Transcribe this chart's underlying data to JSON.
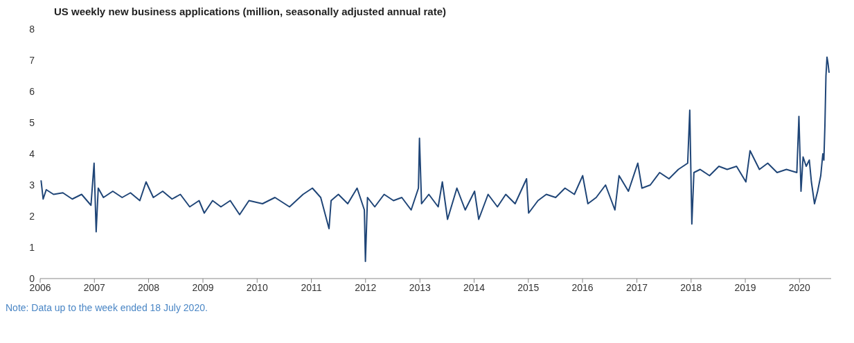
{
  "chart_data": {
    "type": "line",
    "title": "US weekly new business applications (million, seasonally adjusted annual rate)",
    "annotations": [
      "Note: Data up to the week ended 18 July 2020."
    ],
    "xlim": [
      "2006-01-01",
      "2020-08-01"
    ],
    "xticks": [
      "2006",
      "2007",
      "2008",
      "2009",
      "2010",
      "2011",
      "2012",
      "2013",
      "2014",
      "2015",
      "2016",
      "2017",
      "2018",
      "2019",
      "2020"
    ],
    "ylim": [
      0,
      8
    ],
    "yticks": [
      0,
      1,
      2,
      3,
      4,
      5,
      6,
      7,
      8
    ],
    "grid": false,
    "legend": false,
    "marker": "none",
    "line_style": "solid",
    "x": [
      "2006-01-07",
      "2006-01-21",
      "2006-02-11",
      "2006-04-01",
      "2006-06-03",
      "2006-08-05",
      "2006-10-07",
      "2006-12-09",
      "2006-12-30",
      "2007-01-13",
      "2007-01-27",
      "2007-03-03",
      "2007-05-05",
      "2007-07-07",
      "2007-09-01",
      "2007-11-03",
      "2007-12-15",
      "2008-02-02",
      "2008-04-05",
      "2008-06-07",
      "2008-08-02",
      "2008-10-04",
      "2008-12-06",
      "2009-01-10",
      "2009-03-07",
      "2009-05-02",
      "2009-07-04",
      "2009-09-05",
      "2009-11-07",
      "2010-02-06",
      "2010-05-01",
      "2010-08-07",
      "2010-11-06",
      "2011-01-08",
      "2011-03-05",
      "2011-04-30",
      "2011-05-14",
      "2011-07-02",
      "2011-09-03",
      "2011-11-05",
      "2011-12-24",
      "2011-12-31",
      "2012-01-14",
      "2012-03-03",
      "2012-05-05",
      "2012-07-07",
      "2012-09-01",
      "2012-11-03",
      "2012-12-22",
      "2012-12-29",
      "2013-01-12",
      "2013-03-02",
      "2013-05-04",
      "2013-06-01",
      "2013-07-06",
      "2013-09-07",
      "2013-11-02",
      "2014-01-04",
      "2014-02-01",
      "2014-04-05",
      "2014-06-07",
      "2014-08-02",
      "2014-10-04",
      "2014-12-20",
      "2015-01-03",
      "2015-03-07",
      "2015-05-02",
      "2015-07-04",
      "2015-09-05",
      "2015-11-07",
      "2016-01-02",
      "2016-02-06",
      "2016-04-02",
      "2016-06-04",
      "2016-08-06",
      "2016-09-03",
      "2016-11-05",
      "2017-01-07",
      "2017-02-04",
      "2017-04-01",
      "2017-06-03",
      "2017-08-05",
      "2017-10-07",
      "2017-12-09",
      "2017-12-23",
      "2018-01-06",
      "2018-01-20",
      "2018-03-03",
      "2018-05-05",
      "2018-07-07",
      "2018-09-01",
      "2018-11-03",
      "2019-01-05",
      "2019-02-02",
      "2019-04-06",
      "2019-06-01",
      "2019-08-03",
      "2019-10-05",
      "2019-12-14",
      "2019-12-28",
      "2020-01-11",
      "2020-01-25",
      "2020-02-15",
      "2020-03-07",
      "2020-03-21",
      "2020-04-11",
      "2020-05-02",
      "2020-05-23",
      "2020-06-06",
      "2020-06-13",
      "2020-06-20",
      "2020-06-27",
      "2020-07-04",
      "2020-07-11",
      "2020-07-18"
    ],
    "series": [
      {
        "color": "#1f4577",
        "values": [
          3.15,
          2.55,
          2.85,
          2.7,
          2.75,
          2.55,
          2.7,
          2.35,
          3.7,
          1.5,
          2.9,
          2.6,
          2.8,
          2.6,
          2.75,
          2.5,
          3.1,
          2.6,
          2.8,
          2.55,
          2.7,
          2.3,
          2.5,
          2.1,
          2.5,
          2.3,
          2.5,
          2.05,
          2.5,
          2.4,
          2.6,
          2.3,
          2.7,
          2.9,
          2.6,
          1.6,
          2.5,
          2.7,
          2.4,
          2.9,
          2.2,
          0.55,
          2.6,
          2.3,
          2.7,
          2.5,
          2.6,
          2.2,
          2.9,
          4.5,
          2.4,
          2.7,
          2.3,
          3.1,
          1.9,
          2.9,
          2.2,
          2.8,
          1.9,
          2.7,
          2.3,
          2.7,
          2.4,
          3.2,
          2.1,
          2.5,
          2.7,
          2.6,
          2.9,
          2.7,
          3.3,
          2.4,
          2.6,
          3.0,
          2.2,
          3.3,
          2.8,
          3.7,
          2.9,
          3.0,
          3.4,
          3.2,
          3.5,
          3.7,
          5.4,
          1.75,
          3.4,
          3.5,
          3.3,
          3.6,
          3.5,
          3.6,
          3.1,
          4.1,
          3.5,
          3.7,
          3.4,
          3.5,
          3.4,
          5.2,
          2.8,
          3.9,
          3.6,
          3.8,
          3.1,
          2.4,
          2.8,
          3.3,
          4.0,
          3.8,
          4.9,
          6.5,
          7.1,
          6.9,
          6.6
        ]
      }
    ]
  }
}
